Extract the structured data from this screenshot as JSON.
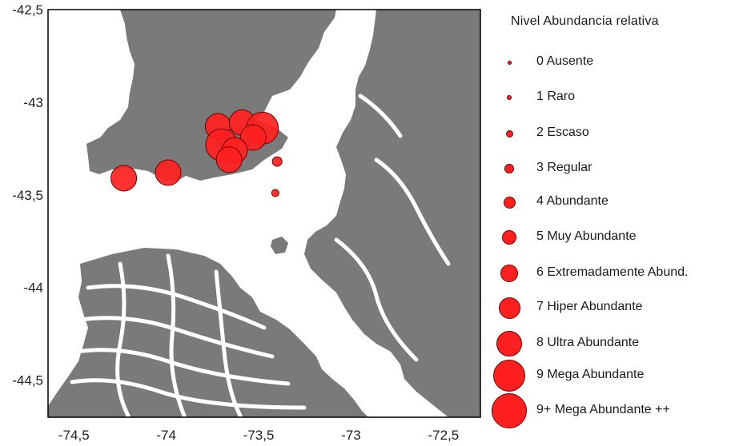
{
  "map": {
    "x_axis": {
      "ticks": [
        "-74,5",
        "-74",
        "-73,5",
        "-73",
        "-72,5"
      ],
      "values": [
        -74.5,
        -74,
        -73.5,
        -73,
        -72.5
      ]
    },
    "y_axis": {
      "ticks": [
        "-42,5",
        "-43",
        "-43,5",
        "-44",
        "-44,5"
      ],
      "values": [
        -42.5,
        -43,
        -43.5,
        -44,
        -44.5
      ]
    },
    "colors": {
      "land": "#7a7a7a",
      "water": "#ffffff",
      "marker": "#ff1f1f",
      "marker_stroke": "#6e0000",
      "frame": "#000000"
    },
    "points": [
      {
        "lon": -74.23,
        "lat": -43.41,
        "level": 8
      },
      {
        "lon": -73.99,
        "lat": -43.38,
        "level": 8
      },
      {
        "lon": -73.72,
        "lat": -43.13,
        "level": 8
      },
      {
        "lon": -73.59,
        "lat": -43.11,
        "level": 8
      },
      {
        "lon": -73.48,
        "lat": -43.14,
        "level": 9
      },
      {
        "lon": -73.53,
        "lat": -43.19,
        "level": 8
      },
      {
        "lon": -73.7,
        "lat": -43.23,
        "level": 9
      },
      {
        "lon": -73.63,
        "lat": -43.26,
        "level": 8
      },
      {
        "lon": -73.66,
        "lat": -43.31,
        "level": 8
      },
      {
        "lon": -73.4,
        "lat": -43.32,
        "level": 3
      },
      {
        "lon": -73.41,
        "lat": -43.49,
        "level": 2
      }
    ]
  },
  "legend": {
    "title": "Nivel Abundancia  relativa",
    "items": [
      {
        "label": "0 Ausente",
        "level": 0
      },
      {
        "label": "1 Raro",
        "level": 1
      },
      {
        "label": "2 Escaso",
        "level": 2
      },
      {
        "label": "3 Regular",
        "level": 3
      },
      {
        "label": "4 Abundante",
        "level": 4
      },
      {
        "label": "5 Muy Abundante",
        "level": 5
      },
      {
        "label": "6 Extremadamente Abund.",
        "level": 6
      },
      {
        "label": "7 Hiper Abundante",
        "level": 7
      },
      {
        "label": "8 Ultra Abundante",
        "level": 8
      },
      {
        "label": "9 Mega Abundante",
        "level": 9
      },
      {
        "label": "9+ Mega Abundante  ++",
        "level": 10
      }
    ]
  }
}
